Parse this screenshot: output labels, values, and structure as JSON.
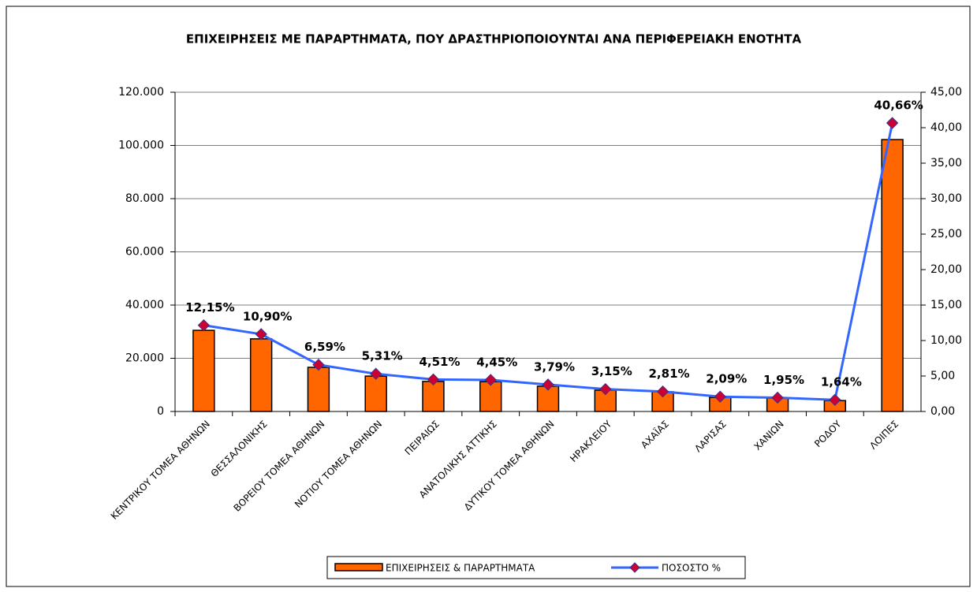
{
  "chart_data": {
    "type": "bar-line",
    "title": "ΕΠΙΧΕΙΡΗΣΕΙΣ ΜΕ ΠΑΡΑΡΤΗΜΑΤΑ, ΠΟΥ ΔΡΑΣΤΗΡΙΟΠΟΙΟΥΝΤΑΙ ΑΝΑ ΠΕΡΙΦΕΡΕΙΑΚΗ ΕΝΟΤΗΤΑ",
    "categories": [
      "ΚΕΝΤΡΙΚΟΥ ΤΟΜΕΑ ΑΘΗΝΩΝ",
      "ΘΕΣΣΑΛΟΝΙΚΗΣ",
      "ΒΟΡΕΙΟΥ ΤΟΜΕΑ ΑΘΗΝΩΝ",
      "ΝΟΤΙΟΥ ΤΟΜΕΑ ΑΘΗΝΩΝ",
      "ΠΕΙΡΑΙΩΣ",
      "ΑΝΑΤΟΛΙΚΗΣ ΑΤΤΙΚΗΣ",
      "ΔΥΤΙΚΟΥ ΤΟΜΕΑ ΑΘΗΝΩΝ",
      "ΗΡΑΚΛΕΙΟΥ",
      "ΑΧΑΪΑΣ",
      "ΛΑΡΙΣΑΣ",
      "ΧΑΝΙΩΝ",
      "ΡΟΔΟΥ",
      "ΛΟΙΠΕΣ"
    ],
    "series": [
      {
        "name": "ΕΠΙΧΕΙΡΗΣΕΙΣ & ΠΑΡΑΡΤΗΜΑΤΑ",
        "color": "#ff6600",
        "type": "bar",
        "values": [
          30500,
          27300,
          16600,
          13300,
          11300,
          11200,
          9500,
          8000,
          7400,
          5300,
          5000,
          4100,
          102200
        ]
      },
      {
        "name": "ΠΟΣΟΣΤΟ %",
        "color": "#3366ff",
        "marker_color": "#cc0033",
        "type": "line",
        "axis": "y2",
        "values": [
          12.15,
          10.9,
          6.59,
          5.31,
          4.51,
          4.45,
          3.79,
          3.15,
          2.81,
          2.09,
          1.95,
          1.64,
          40.66
        ],
        "value_labels": [
          "12,15%",
          "10,90%",
          "6,59%",
          "5,31%",
          "4,51%",
          "4,45%",
          "3,79%",
          "3,15%",
          "2,81%",
          "2,09%",
          "1,95%",
          "1,64%",
          "40,66%"
        ]
      }
    ],
    "ylim": [
      0,
      120000
    ],
    "yticks": [
      0,
      {
        "value": 20000,
        "label": "20.000"
      },
      {
        "value": 40000,
        "label": "40.000"
      },
      {
        "value": 60000,
        "label": "60.000"
      },
      {
        "value": 80000,
        "label": "80.000"
      },
      {
        "value": 100000,
        "label": "100.000"
      },
      {
        "value": 120000,
        "label": "120.000"
      }
    ],
    "y2lim": [
      0,
      45
    ],
    "y2ticks": [
      {
        "value": 0,
        "label": "0,00"
      },
      {
        "value": 5,
        "label": "5,00"
      },
      {
        "value": 10,
        "label": "10,00"
      },
      {
        "value": 15,
        "label": "15,00"
      },
      {
        "value": 20,
        "label": "20,00"
      },
      {
        "value": 25,
        "label": "25,00"
      },
      {
        "value": 30,
        "label": "30,00"
      },
      {
        "value": 35,
        "label": "35,00"
      },
      {
        "value": 40,
        "label": "40,00"
      },
      {
        "value": 45,
        "label": "45,00"
      }
    ],
    "grid": true,
    "legend": "bottom"
  }
}
